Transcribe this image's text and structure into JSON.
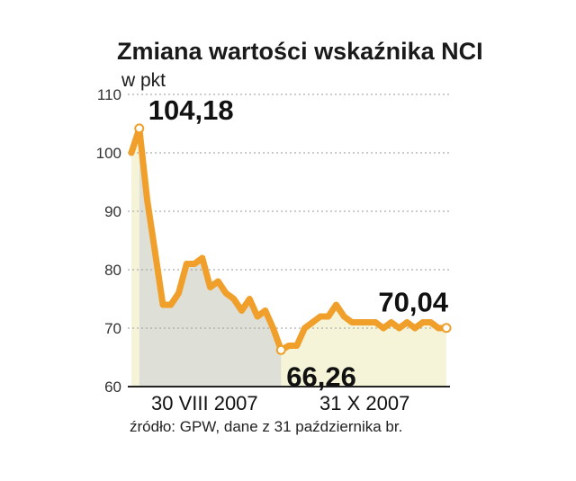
{
  "chart_data": {
    "type": "area",
    "title": "Zmiana wartości wskaźnika NCI",
    "unit_label": "w pkt",
    "source": "źródło: GPW, dane z 31 października br.",
    "ylim": [
      60,
      110
    ],
    "yticks": [
      60,
      70,
      80,
      90,
      100,
      110
    ],
    "x_tick_labels": [
      "30 VIII 2007",
      "31 X 2007"
    ],
    "grid": true,
    "colors": {
      "line": "#f0a02a",
      "area": "#f6f4d8",
      "shade": "#dedfd6",
      "points": "#ffffff",
      "grid": "#9a9a9a"
    },
    "series": [
      {
        "values": [
          100,
          104.18,
          92,
          83,
          74,
          74,
          76,
          81,
          81,
          82,
          77,
          78,
          76,
          75,
          73,
          75,
          72,
          73,
          70,
          66.26,
          67,
          67,
          70,
          71,
          72,
          72,
          74,
          72,
          71,
          71,
          71,
          71,
          70,
          71,
          70,
          71,
          70,
          71,
          71,
          70,
          70.04
        ]
      }
    ],
    "annotations": [
      {
        "label": "104,18",
        "index": 1,
        "value": 104.18
      },
      {
        "label": "66,26",
        "index": 19,
        "value": 66.26
      },
      {
        "label": "70,04",
        "index": 40,
        "value": 70.04
      }
    ],
    "shaded_period_end_index": 19
  }
}
